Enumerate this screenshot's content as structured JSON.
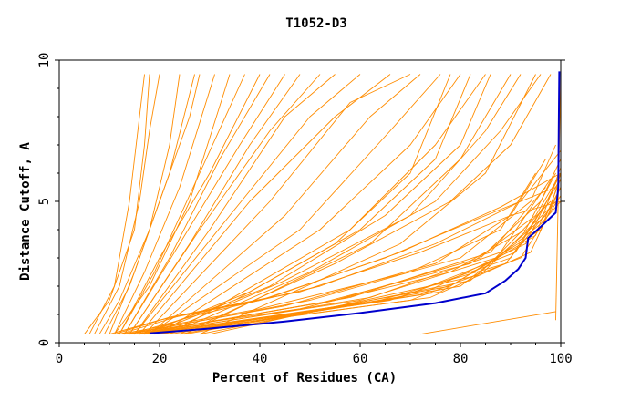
{
  "chart_data": {
    "type": "line",
    "title": "T1052-D3",
    "xlabel": "Percent of Residues (CA)",
    "ylabel": "Distance Cutoff, A",
    "xlim": [
      0,
      100
    ],
    "ylim": [
      0,
      10
    ],
    "x_ticks": [
      "0",
      "20",
      "40",
      "60",
      "80",
      "100"
    ],
    "y_ticks": [
      "0",
      "5",
      "10"
    ],
    "grid": false,
    "colors": {
      "others": "#ff8c00",
      "highlight": "#0000cc"
    },
    "highlight_series": {
      "points": [
        [
          18,
          0.33
        ],
        [
          30,
          0.5
        ],
        [
          45,
          0.75
        ],
        [
          60,
          1.05
        ],
        [
          75,
          1.4
        ],
        [
          85,
          1.75
        ],
        [
          89,
          2.2
        ],
        [
          91.5,
          2.6
        ],
        [
          93,
          3.0
        ],
        [
          93.5,
          3.7
        ],
        [
          96,
          4.1
        ],
        [
          99,
          4.6
        ],
        [
          99.5,
          5.5
        ],
        [
          99.6,
          7.5
        ],
        [
          99.7,
          9.6
        ]
      ]
    },
    "other_series": [
      [
        [
          5,
          0.3
        ],
        [
          10,
          1.5
        ],
        [
          15,
          4
        ],
        [
          17,
          7
        ],
        [
          18,
          9.5
        ]
      ],
      [
        [
          6,
          0.3
        ],
        [
          11,
          2
        ],
        [
          14,
          5
        ],
        [
          16,
          8
        ],
        [
          17,
          9.5
        ]
      ],
      [
        [
          7,
          0.3
        ],
        [
          12,
          2
        ],
        [
          16,
          5
        ],
        [
          18,
          7.5
        ],
        [
          20,
          9.5
        ]
      ],
      [
        [
          8,
          0.3
        ],
        [
          12,
          1.5
        ],
        [
          18,
          4
        ],
        [
          22,
          7
        ],
        [
          24,
          9.5
        ]
      ],
      [
        [
          9,
          0.3
        ],
        [
          14,
          2
        ],
        [
          20,
          5
        ],
        [
          26,
          8
        ],
        [
          28,
          9.5
        ]
      ],
      [
        [
          10,
          0.3
        ],
        [
          15,
          2.5
        ],
        [
          22,
          6
        ],
        [
          27,
          9.5
        ]
      ],
      [
        [
          11,
          0.3
        ],
        [
          17,
          2.5
        ],
        [
          24,
          5.5
        ],
        [
          31,
          9.5
        ]
      ],
      [
        [
          11,
          0.3
        ],
        [
          18,
          2
        ],
        [
          26,
          5
        ],
        [
          34,
          9.5
        ]
      ],
      [
        [
          12,
          0.3
        ],
        [
          19,
          2.5
        ],
        [
          28,
          6
        ],
        [
          37,
          9.5
        ]
      ],
      [
        [
          12,
          0.3
        ],
        [
          20,
          3
        ],
        [
          30,
          6
        ],
        [
          40,
          9.5
        ]
      ],
      [
        [
          13,
          0.3
        ],
        [
          22,
          3
        ],
        [
          32,
          6.5
        ],
        [
          42,
          9.5
        ]
      ],
      [
        [
          13,
          0.3
        ],
        [
          24,
          3.5
        ],
        [
          36,
          7
        ],
        [
          45,
          9.5
        ]
      ],
      [
        [
          14,
          0.3
        ],
        [
          26,
          3.5
        ],
        [
          38,
          7
        ],
        [
          48,
          9.5
        ]
      ],
      [
        [
          14,
          0.3
        ],
        [
          28,
          4
        ],
        [
          42,
          7.5
        ],
        [
          52,
          9.5
        ]
      ],
      [
        [
          15,
          0.3
        ],
        [
          30,
          4
        ],
        [
          45,
          8
        ],
        [
          55,
          9.5
        ]
      ],
      [
        [
          15,
          0.3
        ],
        [
          34,
          4.5
        ],
        [
          50,
          8
        ],
        [
          60,
          9.5
        ]
      ],
      [
        [
          16,
          0.3
        ],
        [
          38,
          5
        ],
        [
          55,
          8
        ],
        [
          66,
          9.5
        ]
      ],
      [
        [
          17,
          0.3
        ],
        [
          42,
          5
        ],
        [
          58,
          8.5
        ],
        [
          70,
          9.5
        ]
      ],
      [
        [
          18,
          0.3
        ],
        [
          45,
          4.5
        ],
        [
          62,
          8
        ],
        [
          72,
          9.5
        ]
      ],
      [
        [
          18,
          0.3
        ],
        [
          48,
          4
        ],
        [
          66,
          7.5
        ],
        [
          76,
          9.5
        ]
      ],
      [
        [
          20,
          0.3
        ],
        [
          52,
          4
        ],
        [
          70,
          7
        ],
        [
          80,
          9.5
        ]
      ],
      [
        [
          22,
          0.3
        ],
        [
          58,
          4
        ],
        [
          75,
          7
        ],
        [
          85,
          9.5
        ]
      ],
      [
        [
          25,
          0.3
        ],
        [
          62,
          3.5
        ],
        [
          80,
          6.5
        ],
        [
          90,
          9.5
        ]
      ],
      [
        [
          28,
          0.3
        ],
        [
          68,
          3.5
        ],
        [
          85,
          6
        ],
        [
          95,
          9.5
        ]
      ],
      [
        [
          12,
          0.3
        ],
        [
          40,
          1.2
        ],
        [
          70,
          2.5
        ],
        [
          88,
          4
        ],
        [
          95,
          6
        ]
      ],
      [
        [
          13,
          0.3
        ],
        [
          45,
          1.3
        ],
        [
          75,
          2.8
        ],
        [
          90,
          4.5
        ],
        [
          97,
          6.5
        ]
      ],
      [
        [
          13,
          0.3
        ],
        [
          48,
          1.2
        ],
        [
          78,
          2.5
        ],
        [
          93,
          4
        ],
        [
          99,
          6
        ]
      ],
      [
        [
          14,
          0.3
        ],
        [
          50,
          1.5
        ],
        [
          80,
          3
        ],
        [
          94,
          5
        ],
        [
          99,
          7
        ]
      ],
      [
        [
          15,
          0.3
        ],
        [
          52,
          1.4
        ],
        [
          82,
          2.8
        ],
        [
          95,
          4.5
        ],
        [
          100,
          6
        ]
      ],
      [
        [
          15,
          0.3
        ],
        [
          55,
          1.5
        ],
        [
          84,
          3
        ],
        [
          96,
          5
        ],
        [
          100,
          6.5
        ]
      ],
      [
        [
          16,
          0.3
        ],
        [
          58,
          1.6
        ],
        [
          86,
          3.2
        ],
        [
          97,
          5.5
        ]
      ],
      [
        [
          16,
          0.3
        ],
        [
          60,
          1.5
        ],
        [
          87,
          3
        ],
        [
          98,
          5
        ]
      ],
      [
        [
          17,
          0.3
        ],
        [
          62,
          1.6
        ],
        [
          88,
          3.2
        ],
        [
          98,
          5.8
        ]
      ],
      [
        [
          17,
          0.3
        ],
        [
          64,
          1.5
        ],
        [
          89,
          2.8
        ],
        [
          99,
          5
        ]
      ],
      [
        [
          18,
          0.3
        ],
        [
          66,
          1.5
        ],
        [
          90,
          3
        ],
        [
          99,
          5.5
        ]
      ],
      [
        [
          18,
          0.3
        ],
        [
          68,
          1.6
        ],
        [
          91,
          3.2
        ],
        [
          100,
          5.8
        ]
      ],
      [
        [
          19,
          0.3
        ],
        [
          70,
          1.5
        ],
        [
          92,
          3
        ],
        [
          100,
          5.2
        ]
      ],
      [
        [
          20,
          0.3
        ],
        [
          72,
          1.7
        ],
        [
          93,
          3.5
        ],
        [
          100,
          6
        ]
      ],
      [
        [
          20,
          0.3
        ],
        [
          74,
          1.6
        ],
        [
          94,
          3.2
        ],
        [
          100,
          5.5
        ]
      ],
      [
        [
          22,
          0.3
        ],
        [
          76,
          1.8
        ],
        [
          95,
          3.8
        ],
        [
          100,
          6.2
        ]
      ],
      [
        [
          24,
          0.3
        ],
        [
          78,
          2
        ],
        [
          96,
          4
        ],
        [
          100,
          5.8
        ]
      ],
      [
        [
          25,
          0.3
        ],
        [
          80,
          2
        ],
        [
          96,
          4.2
        ],
        [
          100,
          5
        ]
      ],
      [
        [
          28,
          0.3
        ],
        [
          82,
          2.2
        ],
        [
          97,
          4.5
        ],
        [
          100,
          5.5
        ]
      ],
      [
        [
          30,
          0.3
        ],
        [
          84,
          2.4
        ],
        [
          98,
          4.8
        ],
        [
          100,
          6
        ]
      ],
      [
        [
          16,
          0.3
        ],
        [
          35,
          1.5
        ],
        [
          55,
          3.5
        ],
        [
          70,
          6
        ],
        [
          78,
          9.5
        ]
      ],
      [
        [
          17,
          0.3
        ],
        [
          38,
          1.8
        ],
        [
          60,
          4
        ],
        [
          75,
          6.5
        ],
        [
          82,
          9.5
        ]
      ],
      [
        [
          18,
          0.3
        ],
        [
          42,
          2
        ],
        [
          65,
          4.5
        ],
        [
          80,
          7
        ],
        [
          86,
          9.5
        ]
      ],
      [
        [
          20,
          0.3
        ],
        [
          45,
          2.2
        ],
        [
          70,
          4.5
        ],
        [
          85,
          7.5
        ],
        [
          92,
          9.5
        ]
      ],
      [
        [
          22,
          0.3
        ],
        [
          50,
          2.5
        ],
        [
          75,
          5
        ],
        [
          88,
          7.5
        ],
        [
          96,
          9.5
        ]
      ],
      [
        [
          24,
          0.3
        ],
        [
          55,
          2.8
        ],
        [
          78,
          5
        ],
        [
          90,
          7
        ],
        [
          98,
          9.5
        ]
      ],
      [
        [
          72,
          0.3
        ],
        [
          99,
          1.1
        ]
      ],
      [
        [
          10,
          0.3
        ],
        [
          20,
          0.8
        ],
        [
          40,
          1.5
        ],
        [
          65,
          3
        ],
        [
          85,
          4.5
        ],
        [
          99,
          5.5
        ]
      ],
      [
        [
          11,
          0.3
        ],
        [
          22,
          0.9
        ],
        [
          42,
          1.6
        ],
        [
          68,
          3.2
        ],
        [
          88,
          4.8
        ],
        [
          100,
          6
        ]
      ],
      [
        [
          12,
          0.3
        ],
        [
          25,
          1
        ],
        [
          48,
          1.8
        ],
        [
          72,
          3.2
        ],
        [
          90,
          4.5
        ],
        [
          100,
          5
        ]
      ],
      [
        [
          14,
          0.3
        ],
        [
          28,
          1
        ],
        [
          52,
          2
        ],
        [
          75,
          3.5
        ],
        [
          92,
          5
        ],
        [
          100,
          6.8
        ]
      ],
      [
        [
          99,
          0.8
        ],
        [
          100,
          9.5
        ]
      ]
    ]
  }
}
